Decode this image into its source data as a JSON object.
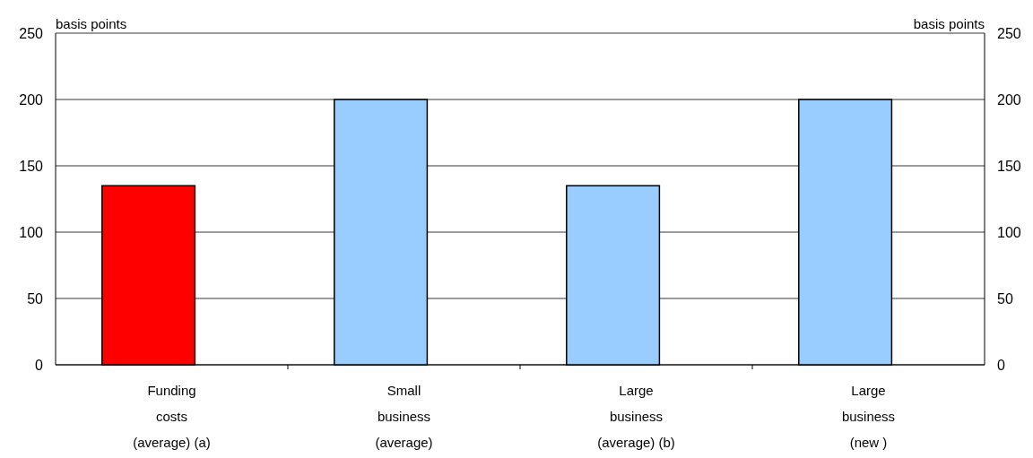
{
  "chart_data": {
    "type": "bar",
    "categories": [
      "Funding\ncosts\n(average) (a)",
      "Small\nbusiness\n(average)",
      "Large\nbusiness\n(average) (b)",
      "Large\nbusiness\n(new )"
    ],
    "values": [
      135,
      200,
      135,
      200
    ],
    "colors": [
      "#ff0000",
      "#99ccff",
      "#99ccff",
      "#99ccff"
    ],
    "ylabel": "basis points",
    "y2label": "basis points",
    "ylim": [
      0,
      250
    ],
    "yticks": [
      0,
      50,
      100,
      150,
      200,
      250
    ],
    "y2lim": [
      0,
      250
    ],
    "y2ticks": [
      0,
      50,
      100,
      150,
      200,
      250
    ],
    "grid": "y"
  }
}
